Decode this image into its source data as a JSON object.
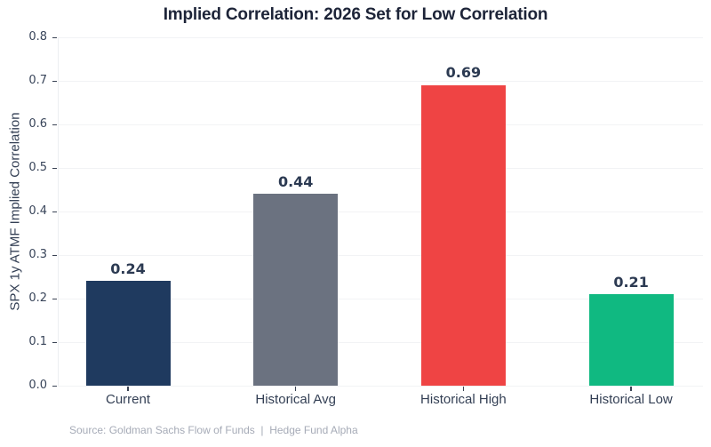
{
  "chart_data": {
    "type": "bar",
    "title": "Implied Correlation: 2026 Set for Low Correlation",
    "ylabel": "SPX 1y ATMF Implied Correlation",
    "xlabel": "",
    "categories": [
      "Current",
      "Historical Avg",
      "Historical High",
      "Historical Low"
    ],
    "values": [
      0.24,
      0.44,
      0.69,
      0.21
    ],
    "value_labels": [
      "0.24",
      "0.44",
      "0.69",
      "0.21"
    ],
    "bar_colors": [
      "#1f3a5f",
      "#6b7280",
      "#ef4444",
      "#10b981"
    ],
    "ylim": [
      0.0,
      0.8
    ],
    "yticks": [
      0.0,
      0.1,
      0.2,
      0.3,
      0.4,
      0.5,
      0.6,
      0.7,
      0.8
    ],
    "ytick_labels": [
      "0.0",
      "0.1",
      "0.2",
      "0.3",
      "0.4",
      "0.5",
      "0.6",
      "0.7",
      "0.8"
    ],
    "grid": "horizontal",
    "legend_position": "none"
  },
  "footer": {
    "source": "Source: Goldman Sachs Flow of Funds  |  Hedge Fund Alpha"
  },
  "colors": {
    "title_text": "#1d2438",
    "axis_text": "#333f54",
    "value_text": "#2c3a52",
    "gridline": "#f2f3f5",
    "source_text": "#a6abb7",
    "background": "#ffffff"
  }
}
